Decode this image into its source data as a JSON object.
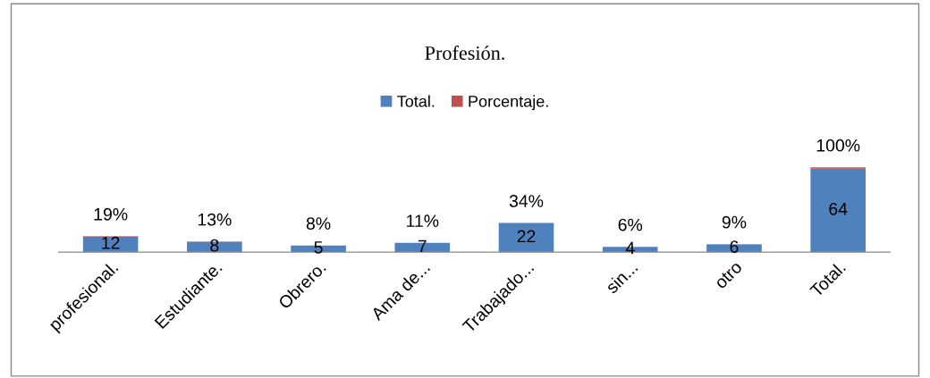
{
  "chart_data": {
    "type": "bar",
    "title": "Profesión.",
    "stacked": true,
    "legend": "top",
    "categories": [
      "profesional.",
      "Estudiante.",
      "Obrero.",
      "Ama de...",
      "Trabajado...",
      "sin...",
      "otro",
      "Total."
    ],
    "series": [
      {
        "name": "Total.",
        "color": "#4f81bd",
        "values": [
          12,
          8,
          5,
          7,
          22,
          4,
          6,
          64
        ],
        "value_labels": [
          "12",
          "8",
          "5",
          "7",
          "22",
          "4",
          "6",
          "64"
        ]
      },
      {
        "name": "Porcentaje.",
        "color": "#c0504d",
        "values": [
          0.19,
          0.13,
          0.08,
          0.11,
          0.34,
          0.06,
          0.09,
          1.0
        ],
        "value_labels": [
          "19%",
          "13%",
          "8%",
          "11%",
          "34%",
          "6%",
          "9%",
          "100%"
        ]
      }
    ]
  }
}
